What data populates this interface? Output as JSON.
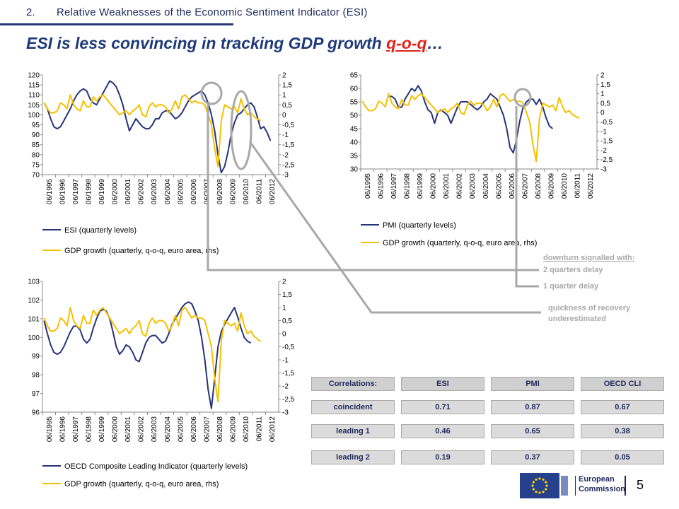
{
  "header": {
    "section_number": "2.",
    "section_title": "Relative Weaknesses of the Economic Sentiment Indicator (ESI)",
    "title_main": "ESI is less convincing in tracking GDP growth ",
    "title_highlight": "q-o-q",
    "title_ellipsis": "…"
  },
  "colors": {
    "indicator_line": "#26337a",
    "gdp_line": "#f5c000",
    "annotation_gray": "#a8a8a8",
    "table_fill": "#dbdbdb",
    "title_blue": "#1f3a78",
    "highlight_red": "#e0231a"
  },
  "notes": {
    "downturn_header": "downturn signalled with:",
    "two_quarters": "2 quarters delay",
    "one_quarter": "1 quarter delay",
    "recovery_line1": "quickness of recovery",
    "recovery_line2": "underestimated"
  },
  "table": {
    "header": [
      "Correlations:",
      "ESI",
      "PMI",
      "OECD CLI"
    ],
    "rows": [
      [
        "coincident",
        "0.71",
        "0.87",
        "0.67"
      ],
      [
        "leading 1",
        "0.46",
        "0.65",
        "0.38"
      ],
      [
        "leading 2",
        "0.19",
        "0.37",
        "0.05"
      ]
    ]
  },
  "footer": {
    "page_number": "5",
    "logo_line1": "European",
    "logo_line2": "Commission"
  },
  "chart_data": [
    {
      "type": "line",
      "id": "esi",
      "x_labels": [
        "06/1995",
        "06/1996",
        "06/1997",
        "06/1998",
        "06/1999",
        "06/2000",
        "06/2001",
        "06/2002",
        "06/2003",
        "06/2004",
        "06/2005",
        "06/2006",
        "06/2007",
        "06/2008",
        "06/2009",
        "06/2010",
        "06/2011",
        "06/2012"
      ],
      "ylim": [
        70,
        120
      ],
      "y_ticks": [
        "120",
        "115",
        "110",
        "105",
        "100",
        "95",
        "90",
        "85",
        "80",
        "75",
        "70"
      ],
      "y2lim": [
        -3,
        2
      ],
      "y2_ticks": [
        "2",
        "1,5",
        "1",
        "0,5",
        "0",
        "-0,5",
        "-1",
        "-1,5",
        "-2",
        "-2,5",
        "-3"
      ],
      "legend": [
        "ESI (quarterly levels)",
        "GDP growth (quarterly, q-o-q, euro area, rhs)"
      ],
      "series": [
        {
          "name": "ESI (quarterly levels)",
          "axis": "left",
          "values": [
            106,
            103,
            98,
            94,
            93,
            94,
            97,
            100,
            103,
            107,
            110,
            112,
            113,
            112,
            108,
            106,
            105,
            108,
            111,
            114,
            117,
            116,
            114,
            110,
            105,
            98,
            92,
            95,
            98,
            96,
            94,
            93,
            93,
            95,
            98,
            98,
            101,
            102,
            102,
            100,
            98,
            99,
            101,
            104,
            107,
            109,
            110,
            111,
            112,
            110,
            106,
            100,
            92,
            80,
            71,
            74,
            81,
            90,
            96,
            100,
            101,
            103,
            105,
            106,
            104,
            99,
            93,
            94,
            91,
            87
          ]
        },
        {
          "name": "GDP growth (quarterly, q-o-q, euro area, rhs)",
          "axis": "right",
          "values": [
            0.6,
            0.3,
            0.1,
            0.1,
            0.2,
            0.6,
            0.5,
            0.3,
            1.0,
            0.5,
            0.3,
            0.2,
            0.7,
            0.4,
            0.4,
            0.9,
            0.7,
            0.9,
            1.0,
            0.8,
            0.6,
            0.4,
            0.2,
            0.0,
            0.1,
            0.2,
            0.0,
            0.2,
            0.3,
            0.5,
            0.0,
            -0.1,
            0.4,
            0.6,
            0.4,
            0.5,
            0.5,
            0.4,
            0.1,
            0.3,
            0.7,
            0.3,
            0.9,
            1.0,
            0.8,
            0.6,
            0.7,
            0.6,
            0.6,
            0.5,
            0.0,
            -0.5,
            -1.7,
            -2.6,
            -0.3,
            0.5,
            0.4,
            0.3,
            0.4,
            0.1,
            0.8,
            0.3,
            0.0,
            0.1,
            -0.1,
            -0.2,
            -0.3
          ]
        }
      ]
    },
    {
      "type": "line",
      "id": "pmi",
      "x_labels": [
        "06/1995",
        "06/1996",
        "06/1997",
        "06/1998",
        "06/1999",
        "06/2000",
        "06/2001",
        "06/2002",
        "06/2003",
        "06/2004",
        "06/2005",
        "06/2006",
        "06/2007",
        "06/2008",
        "06/2009",
        "06/2010",
        "06/2011",
        "06/2012"
      ],
      "ylim": [
        30,
        65
      ],
      "y_ticks": [
        "65",
        "60",
        "55",
        "50",
        "45",
        "40",
        "35",
        "30"
      ],
      "y2lim": [
        -3,
        2
      ],
      "y2_ticks": [
        "2",
        "1,5",
        "1",
        "0,5",
        "0",
        "-0,5",
        "-1",
        "-1,5",
        "-2",
        "-2,5",
        "-3"
      ],
      "legend": [
        "PMI (quarterly levels)",
        "GDP growth (quarterly, q-o-q, euro area, rhs)"
      ],
      "series": [
        {
          "name": "PMI (quarterly levels)",
          "axis": "left",
          "start_index": 8,
          "values": [
            57,
            57,
            56,
            53,
            53,
            56,
            58,
            60,
            59,
            61,
            59,
            55,
            52,
            51,
            47,
            51,
            52,
            51,
            50,
            47,
            50,
            53,
            55,
            55,
            55,
            54,
            53,
            52,
            53,
            55,
            56,
            58,
            57,
            56,
            53,
            50,
            45,
            38,
            36,
            41,
            48,
            53,
            55,
            56,
            56,
            54,
            56,
            53,
            49,
            46,
            45
          ]
        },
        {
          "name": "GDP growth (quarterly, q-o-q, euro area, rhs)",
          "axis": "right",
          "values": [
            0.6,
            0.3,
            0.1,
            0.1,
            0.2,
            0.6,
            0.5,
            0.3,
            1.0,
            0.5,
            0.3,
            0.2,
            0.7,
            0.4,
            0.4,
            0.9,
            0.7,
            0.9,
            1.0,
            0.8,
            0.6,
            0.4,
            0.2,
            0.0,
            0.1,
            0.2,
            0.0,
            0.2,
            0.3,
            0.5,
            0.0,
            -0.1,
            0.4,
            0.6,
            0.4,
            0.5,
            0.5,
            0.4,
            0.1,
            0.3,
            0.7,
            0.3,
            0.9,
            1.0,
            0.8,
            0.6,
            0.7,
            0.6,
            0.6,
            0.5,
            0.0,
            -0.5,
            -1.7,
            -2.6,
            -0.3,
            0.5,
            0.4,
            0.3,
            0.4,
            0.1,
            0.8,
            0.3,
            0.0,
            0.1,
            -0.1,
            -0.2,
            -0.3
          ]
        }
      ]
    },
    {
      "type": "line",
      "id": "oecd",
      "x_labels": [
        "06/1995",
        "06/1996",
        "06/1997",
        "06/1998",
        "06/1999",
        "06/2000",
        "06/2001",
        "06/2002",
        "06/2003",
        "06/2004",
        "06/2005",
        "06/2006",
        "06/2007",
        "06/2008",
        "06/2009",
        "06/2010",
        "06/2011",
        "06/2012"
      ],
      "ylim": [
        96,
        103
      ],
      "y_ticks": [
        "103",
        "102",
        "101",
        "100",
        "99",
        "98",
        "97",
        "96"
      ],
      "y2lim": [
        -3,
        2
      ],
      "y2_ticks": [
        "2",
        "1,5",
        "1",
        "0,5",
        "0",
        "-0,5",
        "-1",
        "-1,5",
        "-2",
        "-2,5",
        "-3"
      ],
      "legend": [
        "OECD Composite Leading Indicator (quarterly levels)",
        "GDP growth (quarterly, q-o-q, euro area, rhs)"
      ],
      "series": [
        {
          "name": "OECD Composite Leading Indicator (quarterly levels)",
          "axis": "left",
          "values": [
            100.9,
            100.2,
            99.6,
            99.2,
            99.1,
            99.2,
            99.5,
            99.9,
            100.3,
            100.6,
            100.6,
            100.4,
            99.9,
            99.7,
            99.9,
            100.5,
            101.0,
            101.4,
            101.5,
            101.4,
            101.0,
            100.3,
            99.5,
            99.1,
            99.3,
            99.6,
            99.5,
            99.2,
            98.8,
            98.7,
            99.2,
            99.7,
            100.0,
            100.1,
            100.1,
            99.9,
            99.7,
            99.8,
            100.2,
            100.7,
            101.0,
            101.3,
            101.6,
            101.8,
            101.9,
            101.8,
            101.4,
            100.9,
            100.0,
            98.8,
            97.2,
            96.2,
            97.8,
            99.5,
            100.3,
            100.7,
            101.0,
            101.3,
            101.6,
            101.1,
            100.5,
            100.0,
            99.8,
            99.7
          ]
        },
        {
          "name": "GDP growth (quarterly, q-o-q, euro area, rhs)",
          "axis": "right",
          "values": [
            0.6,
            0.3,
            0.1,
            0.1,
            0.2,
            0.6,
            0.5,
            0.3,
            1.0,
            0.5,
            0.3,
            0.2,
            0.7,
            0.4,
            0.4,
            0.9,
            0.7,
            0.9,
            1.0,
            0.8,
            0.6,
            0.4,
            0.2,
            0.0,
            0.1,
            0.2,
            0.0,
            0.2,
            0.3,
            0.5,
            0.0,
            -0.1,
            0.4,
            0.6,
            0.4,
            0.5,
            0.5,
            0.4,
            0.1,
            0.3,
            0.7,
            0.3,
            0.9,
            1.0,
            0.8,
            0.6,
            0.7,
            0.6,
            0.6,
            0.5,
            0.0,
            -0.5,
            -1.7,
            -2.6,
            -0.3,
            0.5,
            0.4,
            0.3,
            0.4,
            0.1,
            0.8,
            0.3,
            0.0,
            0.1,
            -0.1,
            -0.2,
            -0.3
          ]
        }
      ]
    }
  ]
}
